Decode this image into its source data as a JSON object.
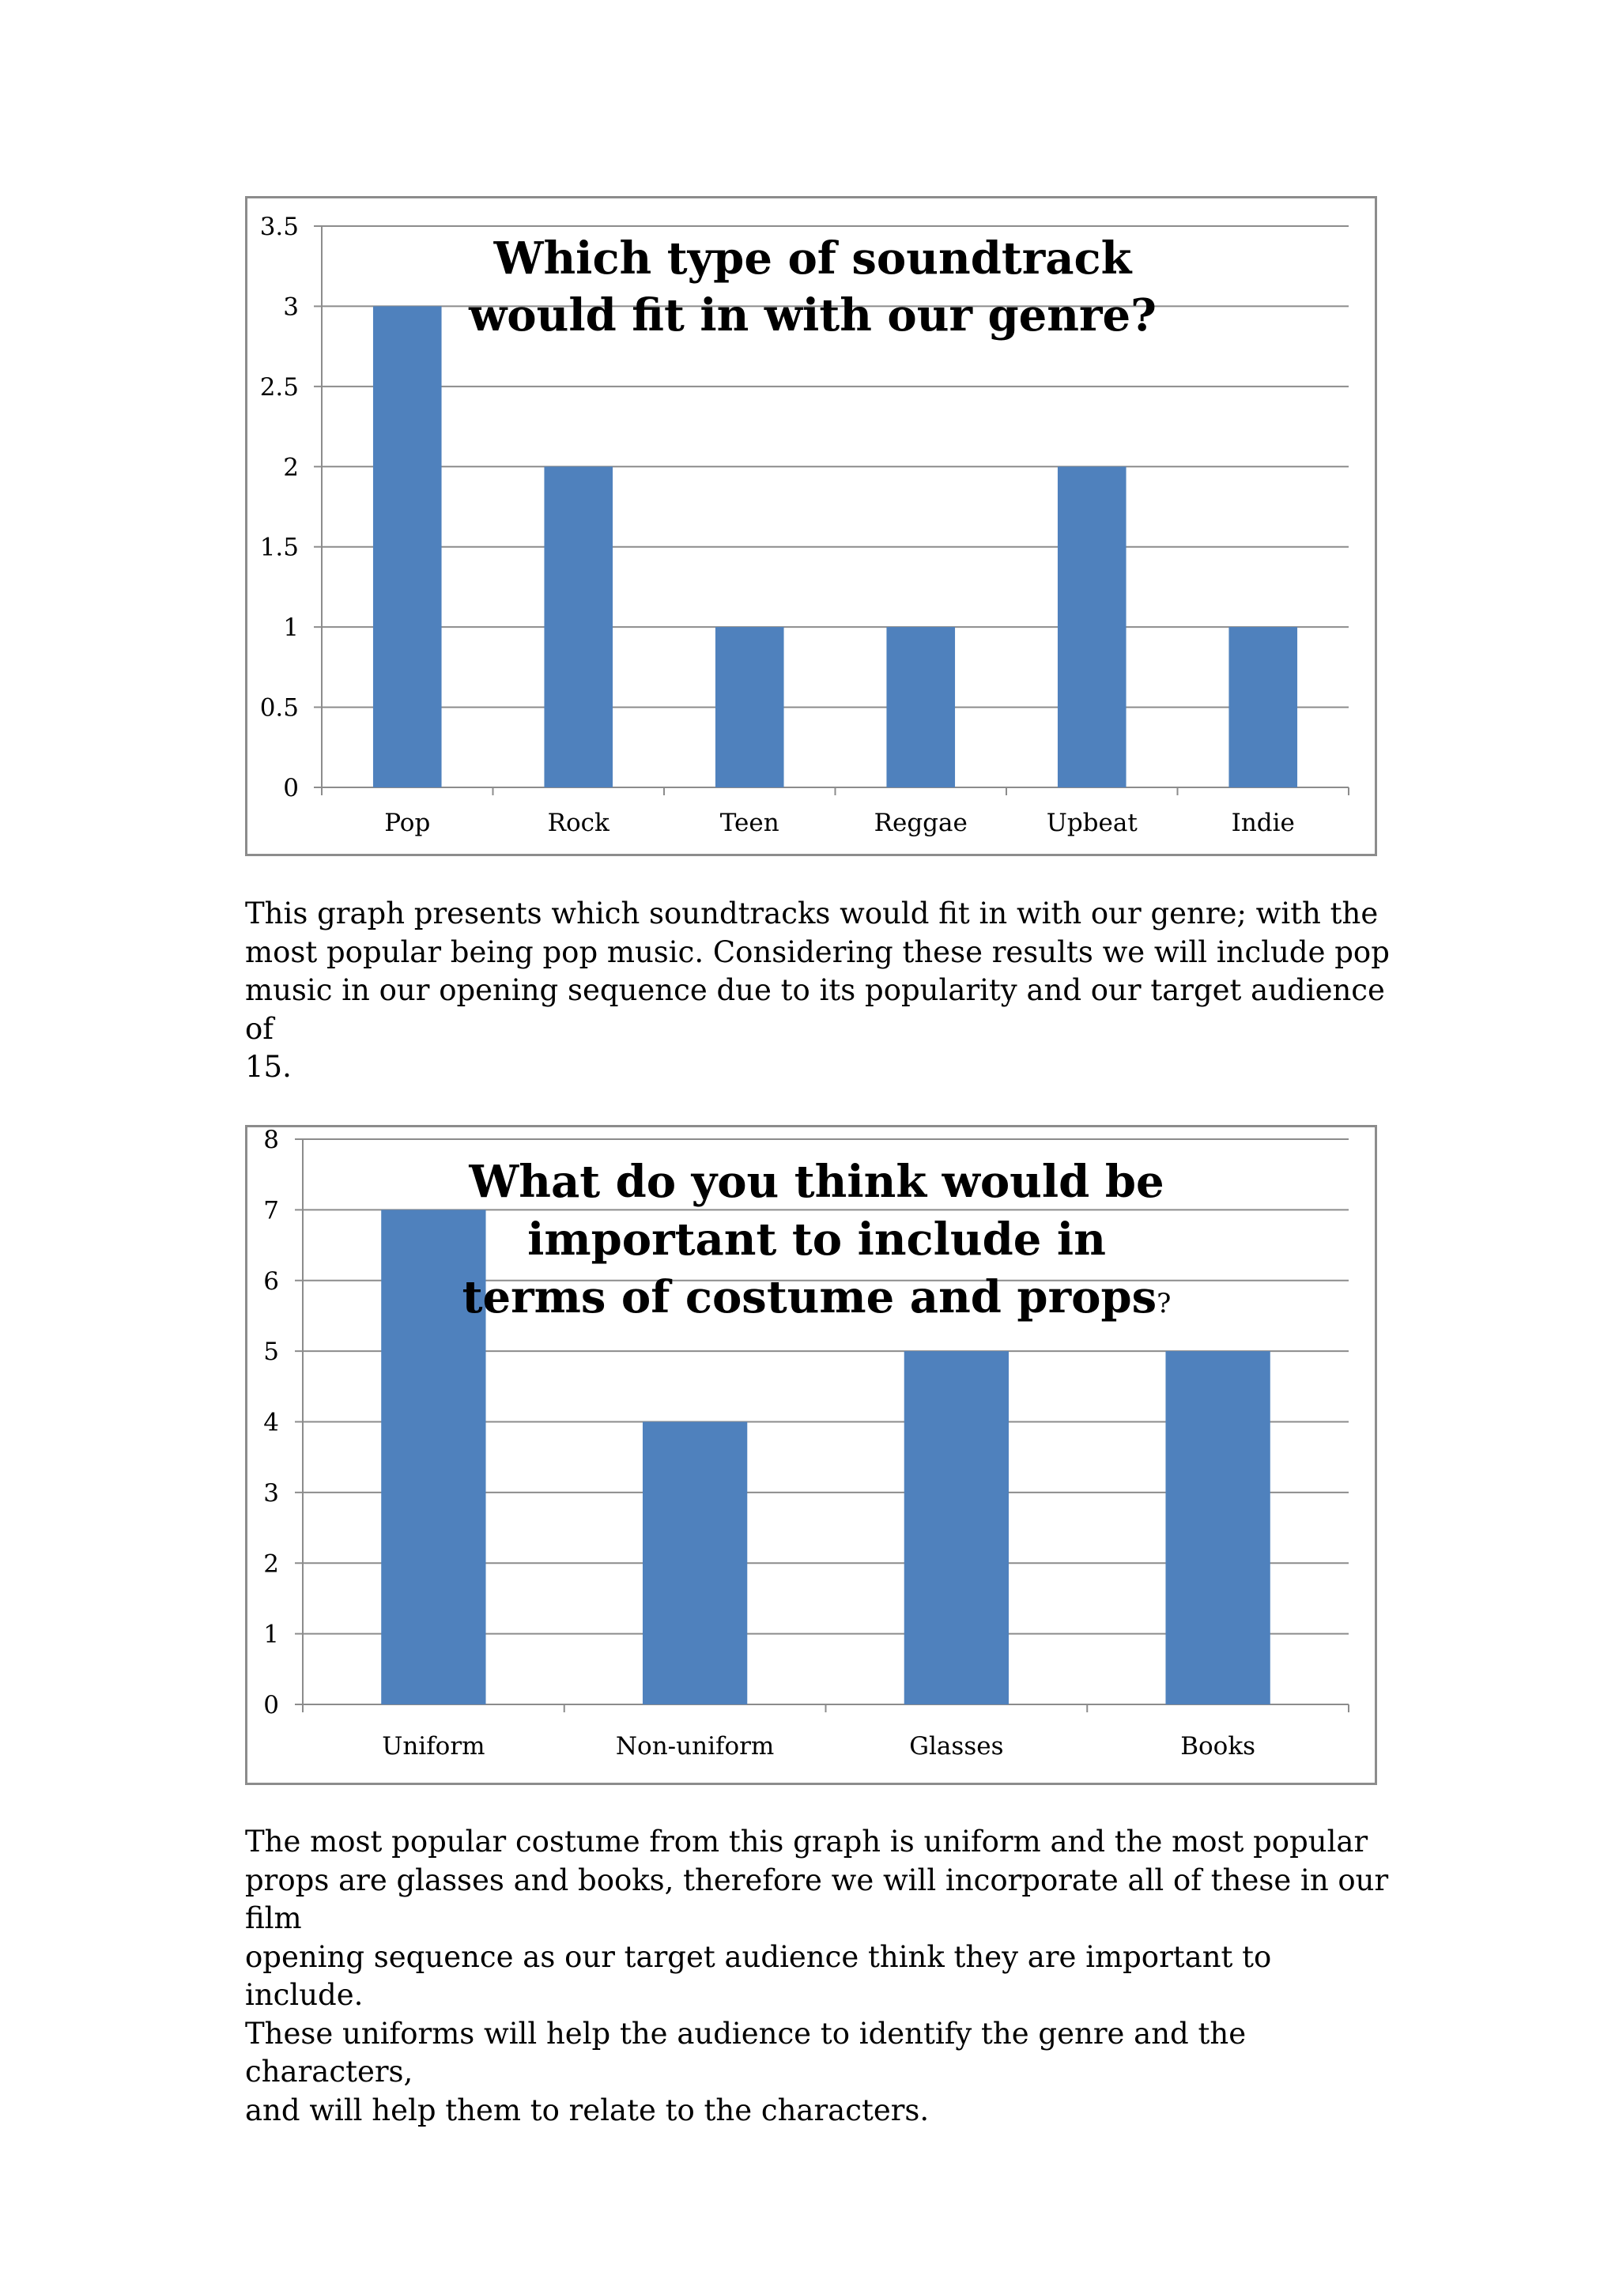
{
  "chart_data": [
    {
      "type": "bar",
      "title_lines": [
        "Which type of soundtrack",
        "would fit in with our genre?"
      ],
      "categories": [
        "Pop",
        "Rock",
        "Teen",
        "Reggae",
        "Upbeat",
        "Indie"
      ],
      "values": [
        3,
        2,
        1,
        1,
        2,
        1
      ],
      "yticks": [
        "0",
        "0.5",
        "1",
        "1.5",
        "2",
        "2.5",
        "3",
        "3.5"
      ],
      "ylim": [
        0,
        3.5
      ],
      "grid": true,
      "legend": "none",
      "bar_color": "#4f81bd"
    },
    {
      "type": "bar",
      "title_lines": [
        "What do you think would be",
        "important to include in",
        "terms of costume and props"
      ],
      "title_suffix": "?",
      "categories": [
        "Uniform",
        "Non-uniform",
        "Glasses",
        "Books"
      ],
      "values": [
        7,
        4,
        5,
        5
      ],
      "yticks": [
        "0",
        "1",
        "2",
        "3",
        "4",
        "5",
        "6",
        "7",
        "8"
      ],
      "ylim": [
        0,
        8
      ],
      "grid": true,
      "legend": "none",
      "bar_color": "#4f81bd"
    }
  ],
  "paragraphs": [
    "This graph presents which soundtracks would fit in with our genre; with the\nmost popular being pop music. Considering these results we will include pop\nmusic in our opening sequence due to its popularity and our target audience of\n15.",
    "The most popular costume from this graph is uniform and the most popular\nprops are glasses and books, therefore we will incorporate all of these in our film\nopening sequence as our target audience think they are important to include.\nThese uniforms will help the audience to identify the genre and the characters,\nand will help them to relate to the characters."
  ]
}
